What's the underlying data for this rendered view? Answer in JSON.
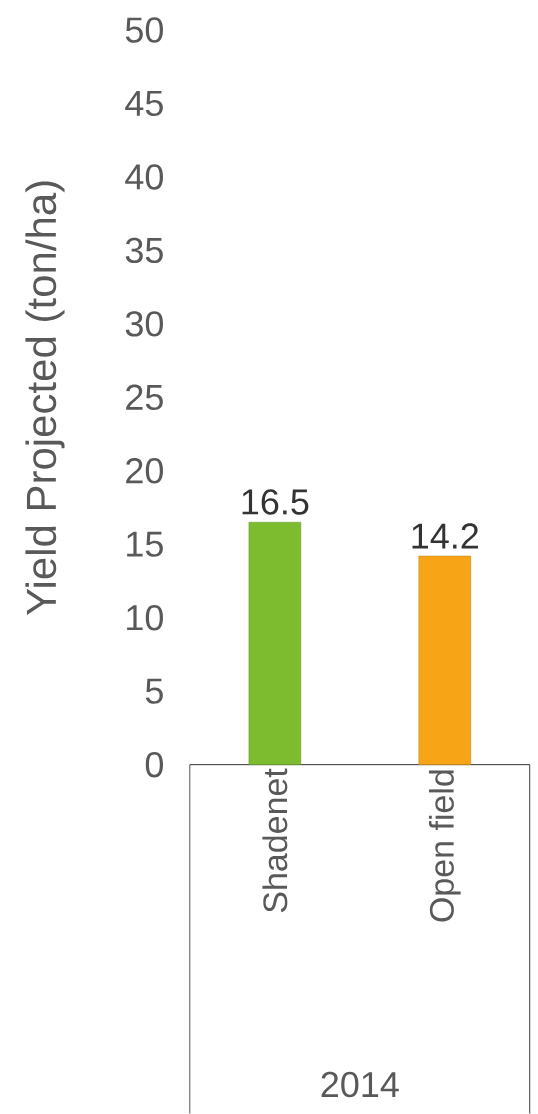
{
  "chart_data": {
    "type": "bar",
    "categories": [
      "Shadenet",
      "Open field"
    ],
    "values": [
      16.5,
      14.2
    ],
    "colors": [
      "#7dbb2f",
      "#f7a416"
    ],
    "xlabel": "2014",
    "ylabel": "Yield Projected (ton/ha)",
    "ylim": [
      0,
      50
    ],
    "yticks": [
      0,
      5,
      10,
      15,
      20,
      25,
      30,
      35,
      40,
      45,
      50
    ],
    "data_labels": true
  }
}
